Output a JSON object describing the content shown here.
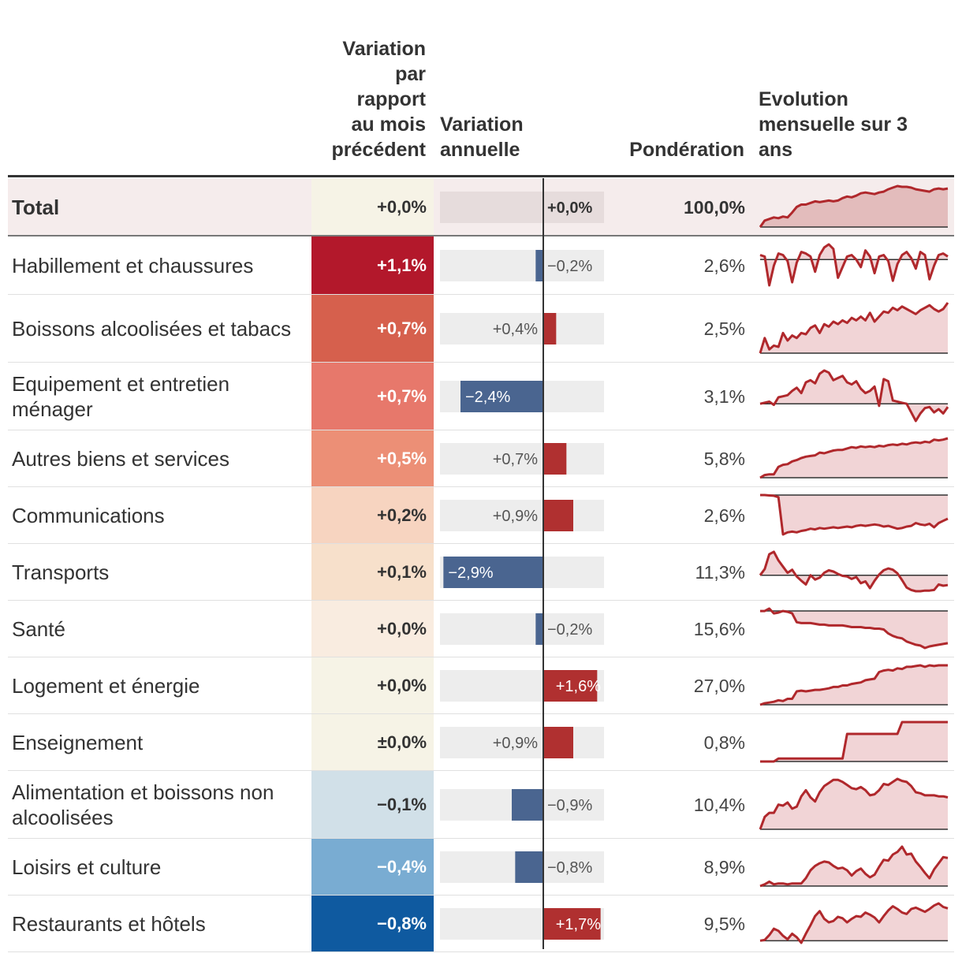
{
  "headers": {
    "mois_lines": [
      "Variation",
      "par",
      "rapport",
      "au mois",
      "précédent"
    ],
    "annuelle_lines": [
      "Variation",
      "annuelle"
    ],
    "ponderation": "Pondération",
    "evolution_lines": [
      "Evolution",
      "mensuelle sur 3",
      "ans"
    ]
  },
  "chart_data": {
    "type": "table",
    "title": "",
    "columns": [
      "Variation par rapport au mois précédent",
      "Variation annuelle",
      "Pondération",
      "Evolution mensuelle sur 3 ans"
    ],
    "annual_axis_min": -3.0,
    "annual_axis_max": 1.8,
    "rows": [
      {
        "category": "Total",
        "total": true,
        "monthly_label": "+0,0%",
        "monthly": 0.0,
        "annual_label": "+0,0%",
        "annual": 0.0,
        "weight": "100,0%",
        "cell_color": "#f6f3e6",
        "text_color": "#333333",
        "spark_type": "area",
        "spark": [
          0.0,
          0.8,
          1.0,
          1.2,
          1.1,
          1.3,
          1.2,
          1.8,
          2.5,
          2.8,
          2.8,
          3.0,
          3.2,
          3.1,
          3.2,
          3.3,
          3.2,
          3.3,
          3.6,
          3.8,
          3.7,
          3.9,
          4.2,
          4.3,
          4.2,
          4.1,
          4.3,
          4.4,
          4.7,
          4.9,
          5.1,
          5.0,
          5.0,
          4.9,
          4.7,
          4.6,
          4.5,
          4.4,
          4.7,
          4.8,
          4.7,
          4.8
        ]
      },
      {
        "category": "Habillement et chaussures",
        "monthly_label": "+1,1%",
        "monthly": 1.1,
        "annual_label": "−0,2%",
        "annual": -0.2,
        "weight": "2,6%",
        "cell_color": "#b3182b",
        "text_color": "#ffffff",
        "spark_type": "around",
        "spark": [
          0.3,
          0.2,
          -1.7,
          -0.4,
          0.4,
          0.3,
          -0.1,
          -1.5,
          -0.2,
          0.5,
          0.4,
          0.2,
          -0.8,
          0.3,
          0.8,
          1.0,
          0.7,
          -1.2,
          -0.5,
          0.2,
          0.3,
          0.0,
          -0.5,
          0.6,
          0.2,
          -0.9,
          0.2,
          0.3,
          -0.1,
          -1.4,
          -0.3,
          0.3,
          0.5,
          0.1,
          -0.6,
          0.5,
          0.3,
          -1.3,
          -0.4,
          0.3,
          0.4,
          0.2
        ]
      },
      {
        "category": "Boissons alcoolisées et tabacs",
        "monthly_label": "+0,7%",
        "monthly": 0.7,
        "annual_label": "+0,4%",
        "annual": 0.4,
        "weight": "2,5%",
        "cell_color": "#d6604d",
        "text_color": "#ffffff",
        "spark_type": "area",
        "spark": [
          0.0,
          1.2,
          0.3,
          0.6,
          0.5,
          1.6,
          1.0,
          1.4,
          1.2,
          1.6,
          1.5,
          2.0,
          2.2,
          1.6,
          2.3,
          2.1,
          2.5,
          2.3,
          2.6,
          2.4,
          2.8,
          2.6,
          2.9,
          2.6,
          3.2,
          2.5,
          2.9,
          3.3,
          3.2,
          3.6,
          3.4,
          3.7,
          3.5,
          3.3,
          3.1,
          3.4,
          3.6,
          3.8,
          3.5,
          3.3,
          3.5,
          4.0
        ]
      },
      {
        "category": "Equipement et entretien ménager",
        "monthly_label": "+0,7%",
        "monthly": 0.7,
        "annual_label": "−2,4%",
        "annual": -2.4,
        "weight": "3,1%",
        "cell_color": "#e7786b",
        "text_color": "#ffffff",
        "spark_type": "around",
        "spark": [
          0.0,
          0.1,
          0.2,
          -0.1,
          0.6,
          0.7,
          0.8,
          1.2,
          1.5,
          1.0,
          2.0,
          2.2,
          1.9,
          2.8,
          3.1,
          2.9,
          2.2,
          2.4,
          2.6,
          2.0,
          1.8,
          2.1,
          1.4,
          1.0,
          1.2,
          1.6,
          -0.2,
          2.3,
          2.1,
          0.3,
          0.2,
          0.1,
          0.0,
          -0.8,
          -1.6,
          -0.9,
          -0.4,
          -0.3,
          -0.8,
          -0.5,
          -0.9,
          -0.3
        ]
      },
      {
        "category": "Autres biens et services",
        "monthly_label": "+0,5%",
        "monthly": 0.5,
        "annual_label": "+0,7%",
        "annual": 0.7,
        "weight": "5,8%",
        "cell_color": "#ec8f76",
        "text_color": "#ffffff",
        "spark_type": "area",
        "spark": [
          0.0,
          0.4,
          0.5,
          0.5,
          1.6,
          1.9,
          2.0,
          2.4,
          2.6,
          2.9,
          3.1,
          3.2,
          3.3,
          3.7,
          3.6,
          3.8,
          4.0,
          4.1,
          4.1,
          4.3,
          4.5,
          4.4,
          4.6,
          4.5,
          4.6,
          4.5,
          4.7,
          4.6,
          4.8,
          4.9,
          4.8,
          5.0,
          4.9,
          5.1,
          5.2,
          5.1,
          5.3,
          5.2,
          5.6,
          5.5,
          5.6,
          5.8
        ]
      },
      {
        "category": "Communications",
        "monthly_label": "+0,2%",
        "monthly": 0.2,
        "annual_label": "+0,9%",
        "annual": 0.9,
        "weight": "2,6%",
        "cell_color": "#f7d4c0",
        "text_color": "#333333",
        "spark_type": "below",
        "spark": [
          0.0,
          0.0,
          -0.05,
          -0.1,
          -0.3,
          -5.5,
          -5.2,
          -5.1,
          -5.2,
          -5.0,
          -4.9,
          -4.7,
          -4.8,
          -4.6,
          -4.7,
          -4.6,
          -4.5,
          -4.6,
          -4.5,
          -4.4,
          -4.5,
          -4.3,
          -4.2,
          -4.3,
          -4.2,
          -4.1,
          -4.2,
          -4.4,
          -4.3,
          -4.5,
          -4.7,
          -4.6,
          -4.4,
          -4.3,
          -3.9,
          -4.1,
          -4.2,
          -4.0,
          -4.5,
          -3.9,
          -3.6,
          -3.3
        ]
      },
      {
        "category": "Transports",
        "monthly_label": "+0,1%",
        "monthly": 0.1,
        "annual_label": "−2,9%",
        "annual": -2.9,
        "weight": "11,3%",
        "cell_color": "#f7e0cb",
        "text_color": "#333333",
        "spark_type": "around",
        "spark": [
          0.0,
          1.0,
          3.4,
          3.8,
          2.4,
          1.4,
          0.4,
          0.9,
          -0.2,
          -0.9,
          -1.5,
          0.0,
          -0.7,
          -0.4,
          0.4,
          0.8,
          0.6,
          0.2,
          -0.1,
          -0.2,
          -0.6,
          -0.3,
          -1.3,
          -1.0,
          -2.1,
          -0.9,
          0.1,
          0.8,
          1.1,
          0.9,
          0.3,
          -0.8,
          -2.0,
          -2.4,
          -2.6,
          -2.6,
          -2.5,
          -2.5,
          -2.4,
          -1.5,
          -1.7,
          -1.6
        ]
      },
      {
        "category": "Santé",
        "monthly_label": "+0,0%",
        "monthly": 0.0,
        "annual_label": "−0,2%",
        "annual": -0.2,
        "weight": "15,6%",
        "cell_color": "#f9ece0",
        "text_color": "#333333",
        "spark_type": "below",
        "spark": [
          0.0,
          0.0,
          0.3,
          -0.3,
          -0.2,
          0.0,
          -0.1,
          -0.3,
          -1.4,
          -1.5,
          -1.5,
          -1.5,
          -1.6,
          -1.7,
          -1.7,
          -1.8,
          -1.8,
          -1.8,
          -1.8,
          -1.9,
          -2.0,
          -2.0,
          -2.0,
          -2.1,
          -2.1,
          -2.2,
          -2.2,
          -2.3,
          -2.8,
          -3.1,
          -3.3,
          -3.4,
          -3.8,
          -4.0,
          -4.2,
          -4.3,
          -4.6,
          -4.4,
          -4.3,
          -4.2,
          -4.1,
          -4.0
        ]
      },
      {
        "category": "Logement et énergie",
        "monthly_label": "+0,0%",
        "monthly": 0.0,
        "annual_label": "+1,6%",
        "annual": 1.6,
        "weight": "27,0%",
        "cell_color": "#f6f3e6",
        "text_color": "#333333",
        "spark_type": "area",
        "spark": [
          0.0,
          0.2,
          0.3,
          0.4,
          0.6,
          0.5,
          0.8,
          0.8,
          1.8,
          1.9,
          1.8,
          1.9,
          2.0,
          2.0,
          2.1,
          2.2,
          2.4,
          2.4,
          2.6,
          2.6,
          2.8,
          2.9,
          3.0,
          3.3,
          3.4,
          3.5,
          4.4,
          4.6,
          4.7,
          4.6,
          4.9,
          4.8,
          5.1,
          5.1,
          5.2,
          5.3,
          5.1,
          5.3,
          5.2,
          5.3,
          5.3,
          5.3
        ]
      },
      {
        "category": "Enseignement",
        "monthly_label": "±0,0%",
        "monthly": 0.0,
        "annual_label": "+0,9%",
        "annual": 0.9,
        "weight": "0,8%",
        "cell_color": "#f6f3e6",
        "text_color": "#333333",
        "spark_type": "area",
        "spark": [
          0.0,
          0.0,
          0.0,
          0.0,
          0.3,
          0.3,
          0.3,
          0.3,
          0.3,
          0.3,
          0.3,
          0.3,
          0.3,
          0.3,
          0.3,
          0.3,
          0.3,
          0.3,
          0.3,
          2.8,
          2.8,
          2.8,
          2.8,
          2.8,
          2.8,
          2.8,
          2.8,
          2.8,
          2.8,
          2.8,
          2.8,
          4.0,
          4.0,
          4.0,
          4.0,
          4.0,
          4.0,
          4.0,
          4.0,
          4.0,
          4.0,
          4.0
        ]
      },
      {
        "category": "Alimentation et boissons non alcoolisées",
        "monthly_label": "−0,1%",
        "monthly": -0.1,
        "annual_label": "−0,9%",
        "annual": -0.9,
        "weight": "10,4%",
        "cell_color": "#d1e0e8",
        "text_color": "#333333",
        "spark_type": "area",
        "spark": [
          0.0,
          1.2,
          1.6,
          1.6,
          2.4,
          2.3,
          2.6,
          2.0,
          2.2,
          3.2,
          3.8,
          3.1,
          2.7,
          3.6,
          4.2,
          4.5,
          4.8,
          4.8,
          4.6,
          4.3,
          4.0,
          3.9,
          4.1,
          3.8,
          3.3,
          3.4,
          3.8,
          4.4,
          4.3,
          4.6,
          4.9,
          4.7,
          4.6,
          4.2,
          3.6,
          3.5,
          3.3,
          3.3,
          3.3,
          3.2,
          3.2,
          3.1
        ]
      },
      {
        "category": "Loisirs et culture",
        "monthly_label": "−0,4%",
        "monthly": -0.4,
        "annual_label": "−0,8%",
        "annual": -0.8,
        "weight": "8,9%",
        "cell_color": "#79acd2",
        "text_color": "#ffffff",
        "spark_type": "area",
        "spark": [
          0.0,
          0.2,
          0.5,
          0.2,
          0.3,
          0.3,
          0.2,
          0.3,
          0.3,
          0.3,
          0.9,
          1.8,
          2.3,
          2.6,
          2.8,
          2.7,
          2.3,
          2.0,
          2.1,
          1.8,
          1.2,
          1.7,
          2.0,
          1.4,
          1.0,
          1.3,
          2.2,
          3.0,
          2.9,
          3.6,
          3.9,
          4.5,
          3.6,
          3.7,
          2.8,
          2.2,
          1.5,
          0.9,
          1.9,
          2.6,
          3.3,
          3.2
        ]
      },
      {
        "category": "Restaurants et hôtels",
        "monthly_label": "−0,8%",
        "monthly": -0.8,
        "annual_label": "+1,7%",
        "annual": 1.7,
        "weight": "9,5%",
        "cell_color": "#0f5aa0",
        "text_color": "#ffffff",
        "spark_type": "area",
        "spark": [
          0.0,
          0.1,
          0.8,
          1.7,
          1.4,
          0.7,
          0.2,
          1.0,
          0.5,
          -0.3,
          1.0,
          2.2,
          3.5,
          4.2,
          3.1,
          2.6,
          2.8,
          3.4,
          3.2,
          2.6,
          3.1,
          3.5,
          3.4,
          4.0,
          3.7,
          3.3,
          2.6,
          3.5,
          4.3,
          4.9,
          4.5,
          4.0,
          3.8,
          4.5,
          4.7,
          4.4,
          4.1,
          4.5,
          5.0,
          5.3,
          4.8,
          4.6
        ]
      }
    ]
  }
}
